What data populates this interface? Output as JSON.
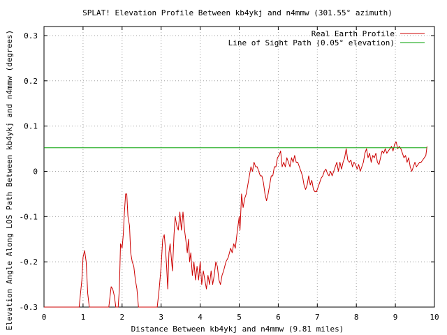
{
  "chart_data": {
    "type": "line",
    "title": "SPLAT! Elevation Profile Between kb4ykj and n4mmw (301.55° azimuth)",
    "xlabel": "Distance Between kb4ykj and n4mmw (9.81 miles)",
    "ylabel": "Elevation Angle Along LOS Path Between kb4ykj and n4mmw (degrees)",
    "xlim": [
      0,
      10
    ],
    "ylim": [
      -0.3,
      0.32
    ],
    "x_ticks": [
      0,
      1,
      2,
      3,
      4,
      5,
      6,
      7,
      8,
      9,
      10
    ],
    "x_tick_labels": [
      "0",
      "1",
      "2",
      "3",
      "4",
      "5",
      "6",
      "7",
      "8",
      "9",
      "10"
    ],
    "y_ticks": [
      -0.3,
      -0.2,
      -0.1,
      0,
      0.1,
      0.2,
      0.3
    ],
    "y_tick_labels": [
      "-0.3",
      "-0.2",
      "-0.1",
      "0",
      "0.1",
      "0.2",
      "0.3"
    ],
    "grid": true,
    "legend_position": "top-right",
    "series": [
      {
        "name": "Real Earth Profile",
        "color": "#cc0000",
        "points": [
          [
            0.0,
            -0.3
          ],
          [
            0.9,
            -0.3
          ],
          [
            0.97,
            -0.24
          ],
          [
            1.0,
            -0.19
          ],
          [
            1.04,
            -0.175
          ],
          [
            1.08,
            -0.2
          ],
          [
            1.12,
            -0.27
          ],
          [
            1.16,
            -0.3
          ],
          [
            1.3,
            -0.3
          ],
          [
            1.4,
            -0.3
          ],
          [
            1.66,
            -0.3
          ],
          [
            1.72,
            -0.255
          ],
          [
            1.76,
            -0.26
          ],
          [
            1.8,
            -0.275
          ],
          [
            1.84,
            -0.3
          ],
          [
            1.9,
            -0.3
          ],
          [
            1.93,
            -0.26
          ],
          [
            1.96,
            -0.16
          ],
          [
            2.0,
            -0.17
          ],
          [
            2.03,
            -0.14
          ],
          [
            2.06,
            -0.09
          ],
          [
            2.09,
            -0.05
          ],
          [
            2.12,
            -0.05
          ],
          [
            2.15,
            -0.1
          ],
          [
            2.19,
            -0.12
          ],
          [
            2.22,
            -0.18
          ],
          [
            2.26,
            -0.2
          ],
          [
            2.3,
            -0.21
          ],
          [
            2.34,
            -0.24
          ],
          [
            2.38,
            -0.26
          ],
          [
            2.42,
            -0.3
          ],
          [
            2.9,
            -0.3
          ],
          [
            2.95,
            -0.26
          ],
          [
            3.0,
            -0.21
          ],
          [
            3.04,
            -0.15
          ],
          [
            3.08,
            -0.14
          ],
          [
            3.11,
            -0.17
          ],
          [
            3.14,
            -0.21
          ],
          [
            3.17,
            -0.26
          ],
          [
            3.2,
            -0.18
          ],
          [
            3.23,
            -0.16
          ],
          [
            3.26,
            -0.19
          ],
          [
            3.29,
            -0.22
          ],
          [
            3.33,
            -0.14
          ],
          [
            3.36,
            -0.1
          ],
          [
            3.4,
            -0.12
          ],
          [
            3.44,
            -0.13
          ],
          [
            3.48,
            -0.09
          ],
          [
            3.52,
            -0.13
          ],
          [
            3.56,
            -0.09
          ],
          [
            3.6,
            -0.13
          ],
          [
            3.63,
            -0.15
          ],
          [
            3.67,
            -0.18
          ],
          [
            3.7,
            -0.15
          ],
          [
            3.73,
            -0.2
          ],
          [
            3.76,
            -0.18
          ],
          [
            3.8,
            -0.23
          ],
          [
            3.84,
            -0.2
          ],
          [
            3.88,
            -0.24
          ],
          [
            3.92,
            -0.21
          ],
          [
            3.96,
            -0.24
          ],
          [
            4.0,
            -0.2
          ],
          [
            4.04,
            -0.25
          ],
          [
            4.08,
            -0.22
          ],
          [
            4.12,
            -0.24
          ],
          [
            4.16,
            -0.26
          ],
          [
            4.2,
            -0.23
          ],
          [
            4.24,
            -0.25
          ],
          [
            4.28,
            -0.22
          ],
          [
            4.32,
            -0.25
          ],
          [
            4.36,
            -0.23
          ],
          [
            4.4,
            -0.2
          ],
          [
            4.44,
            -0.21
          ],
          [
            4.48,
            -0.24
          ],
          [
            4.52,
            -0.25
          ],
          [
            4.56,
            -0.23
          ],
          [
            4.6,
            -0.22
          ],
          [
            4.66,
            -0.2
          ],
          [
            4.72,
            -0.19
          ],
          [
            4.78,
            -0.17
          ],
          [
            4.82,
            -0.18
          ],
          [
            4.86,
            -0.16
          ],
          [
            4.9,
            -0.17
          ],
          [
            4.94,
            -0.14
          ],
          [
            4.97,
            -0.12
          ],
          [
            5.0,
            -0.1
          ],
          [
            5.02,
            -0.13
          ],
          [
            5.04,
            -0.09
          ],
          [
            5.06,
            -0.05
          ],
          [
            5.1,
            -0.08
          ],
          [
            5.14,
            -0.06
          ],
          [
            5.18,
            -0.05
          ],
          [
            5.22,
            -0.03
          ],
          [
            5.26,
            -0.01
          ],
          [
            5.3,
            0.01
          ],
          [
            5.34,
            0.0
          ],
          [
            5.38,
            0.02
          ],
          [
            5.42,
            0.01
          ],
          [
            5.46,
            0.01
          ],
          [
            5.5,
            0.0
          ],
          [
            5.54,
            -0.01
          ],
          [
            5.58,
            -0.01
          ],
          [
            5.62,
            -0.025
          ],
          [
            5.66,
            -0.05
          ],
          [
            5.7,
            -0.065
          ],
          [
            5.74,
            -0.05
          ],
          [
            5.78,
            -0.03
          ],
          [
            5.82,
            -0.01
          ],
          [
            5.86,
            -0.01
          ],
          [
            5.9,
            0.01
          ],
          [
            5.94,
            0.01
          ],
          [
            5.98,
            0.03
          ],
          [
            6.02,
            0.035
          ],
          [
            6.06,
            0.045
          ],
          [
            6.1,
            0.01
          ],
          [
            6.14,
            0.02
          ],
          [
            6.18,
            0.01
          ],
          [
            6.22,
            0.03
          ],
          [
            6.26,
            0.02
          ],
          [
            6.3,
            0.01
          ],
          [
            6.34,
            0.03
          ],
          [
            6.38,
            0.02
          ],
          [
            6.42,
            0.035
          ],
          [
            6.46,
            0.02
          ],
          [
            6.5,
            0.02
          ],
          [
            6.54,
            0.01
          ],
          [
            6.58,
            0.0
          ],
          [
            6.62,
            -0.01
          ],
          [
            6.66,
            -0.03
          ],
          [
            6.7,
            -0.04
          ],
          [
            6.74,
            -0.03
          ],
          [
            6.78,
            -0.01
          ],
          [
            6.82,
            -0.03
          ],
          [
            6.86,
            -0.02
          ],
          [
            6.9,
            -0.04
          ],
          [
            6.94,
            -0.045
          ],
          [
            6.98,
            -0.045
          ],
          [
            7.02,
            -0.035
          ],
          [
            7.06,
            -0.025
          ],
          [
            7.1,
            -0.015
          ],
          [
            7.14,
            -0.01
          ],
          [
            7.18,
            0.0
          ],
          [
            7.22,
            0.005
          ],
          [
            7.26,
            -0.005
          ],
          [
            7.3,
            -0.01
          ],
          [
            7.34,
            0.0
          ],
          [
            7.38,
            -0.01
          ],
          [
            7.42,
            0.0
          ],
          [
            7.46,
            0.01
          ],
          [
            7.5,
            0.02
          ],
          [
            7.54,
            0.0
          ],
          [
            7.58,
            0.02
          ],
          [
            7.62,
            0.005
          ],
          [
            7.66,
            0.02
          ],
          [
            7.7,
            0.03
          ],
          [
            7.74,
            0.05
          ],
          [
            7.78,
            0.025
          ],
          [
            7.82,
            0.02
          ],
          [
            7.86,
            0.025
          ],
          [
            7.9,
            0.01
          ],
          [
            7.94,
            0.02
          ],
          [
            7.98,
            0.015
          ],
          [
            8.02,
            0.005
          ],
          [
            8.06,
            0.015
          ],
          [
            8.1,
            0.0
          ],
          [
            8.14,
            0.01
          ],
          [
            8.18,
            0.02
          ],
          [
            8.22,
            0.04
          ],
          [
            8.26,
            0.05
          ],
          [
            8.3,
            0.03
          ],
          [
            8.34,
            0.04
          ],
          [
            8.38,
            0.02
          ],
          [
            8.42,
            0.035
          ],
          [
            8.46,
            0.03
          ],
          [
            8.5,
            0.04
          ],
          [
            8.54,
            0.02
          ],
          [
            8.58,
            0.015
          ],
          [
            8.62,
            0.03
          ],
          [
            8.66,
            0.045
          ],
          [
            8.7,
            0.04
          ],
          [
            8.74,
            0.05
          ],
          [
            8.78,
            0.04
          ],
          [
            8.82,
            0.045
          ],
          [
            8.86,
            0.05
          ],
          [
            8.9,
            0.055
          ],
          [
            8.94,
            0.045
          ],
          [
            8.98,
            0.06
          ],
          [
            9.02,
            0.065
          ],
          [
            9.06,
            0.05
          ],
          [
            9.1,
            0.055
          ],
          [
            9.14,
            0.05
          ],
          [
            9.18,
            0.04
          ],
          [
            9.22,
            0.03
          ],
          [
            9.26,
            0.035
          ],
          [
            9.3,
            0.02
          ],
          [
            9.34,
            0.03
          ],
          [
            9.38,
            0.01
          ],
          [
            9.42,
            0.0
          ],
          [
            9.46,
            0.01
          ],
          [
            9.5,
            0.02
          ],
          [
            9.54,
            0.01
          ],
          [
            9.58,
            0.015
          ],
          [
            9.62,
            0.02
          ],
          [
            9.66,
            0.02
          ],
          [
            9.7,
            0.025
          ],
          [
            9.74,
            0.03
          ],
          [
            9.78,
            0.035
          ],
          [
            9.81,
            0.055
          ]
        ]
      },
      {
        "name": "Line of Sight Path (0.05° elevation)",
        "color": "#00a000",
        "points": [
          [
            0.0,
            0.052
          ],
          [
            9.81,
            0.052
          ]
        ]
      }
    ]
  }
}
